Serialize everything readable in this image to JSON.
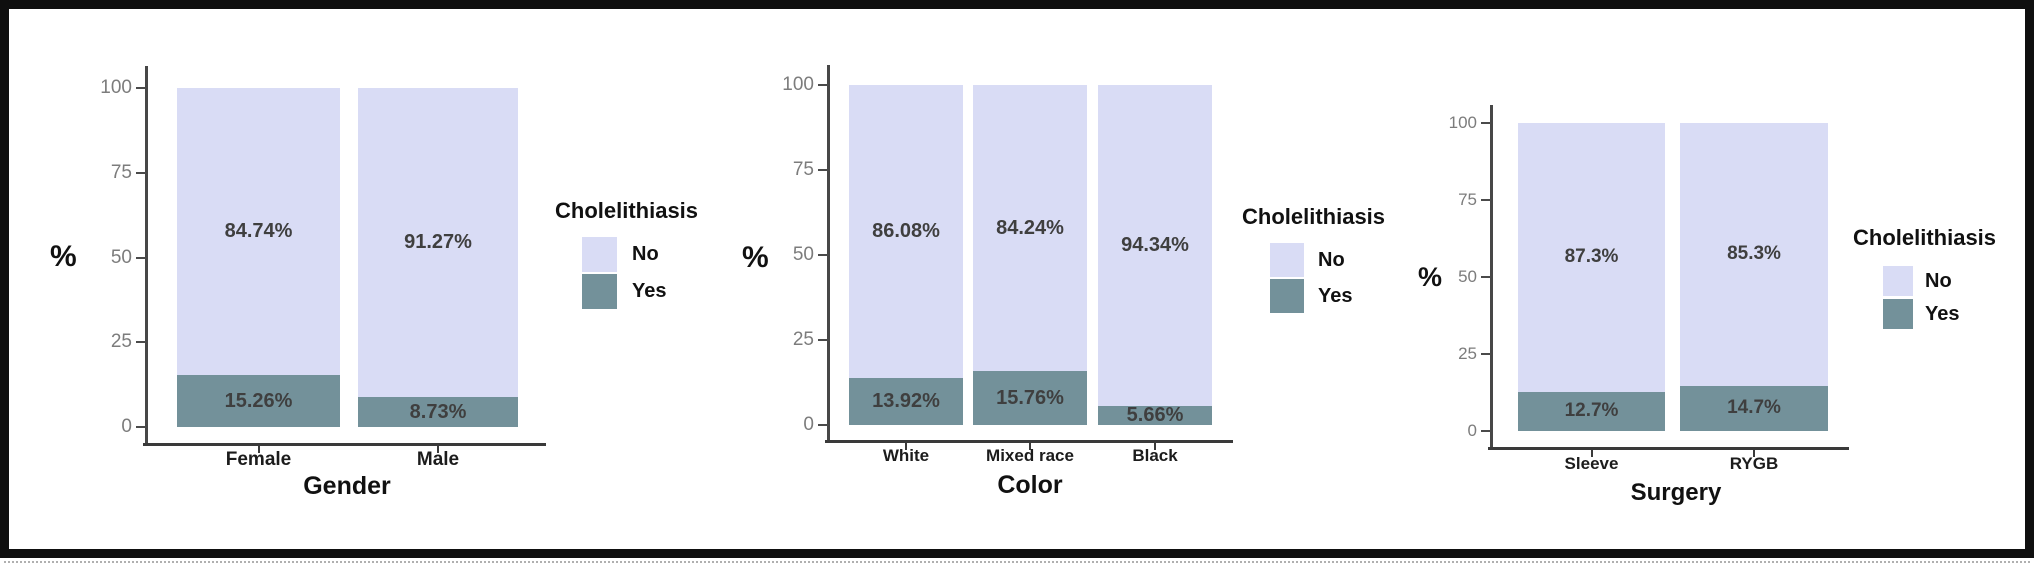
{
  "figure": {
    "background": "#ffffff",
    "frame_color": "#0f0f0f"
  },
  "palette": {
    "no": "#d9dcf5",
    "yes": "#73919a",
    "axis": "#474747",
    "tick_text": "#7c7c7c",
    "value_text": "#3f3f3f"
  },
  "chart_data": [
    {
      "type": "bar",
      "stacked": true,
      "orientation": "vertical",
      "title": "",
      "xlabel": "Gender",
      "ylabel": "%",
      "ylim": [
        0,
        100
      ],
      "yticks": [
        0,
        25,
        50,
        75,
        100
      ],
      "grid": false,
      "categories": [
        "Female",
        "Male"
      ],
      "series": [
        {
          "name": "No",
          "color": "#d9dcf5",
          "values": [
            84.74,
            91.27
          ],
          "labels": [
            "84.74%",
            "91.27%"
          ]
        },
        {
          "name": "Yes",
          "color": "#73919a",
          "values": [
            15.26,
            8.73
          ],
          "labels": [
            "15.26%",
            "8.73%"
          ]
        }
      ],
      "legend": {
        "title": "Cholelithiasis",
        "position": "right",
        "entries": [
          {
            "label": "No",
            "color": "#d9dcf5"
          },
          {
            "label": "Yes",
            "color": "#73919a"
          }
        ]
      }
    },
    {
      "type": "bar",
      "stacked": true,
      "orientation": "vertical",
      "title": "",
      "xlabel": "Color",
      "ylabel": "%",
      "ylim": [
        0,
        100
      ],
      "yticks": [
        0,
        25,
        50,
        75,
        100
      ],
      "grid": false,
      "categories": [
        "White",
        "Mixed race",
        "Black"
      ],
      "series": [
        {
          "name": "No",
          "color": "#d9dcf5",
          "values": [
            86.08,
            84.24,
            94.34
          ],
          "labels": [
            "86.08%",
            "84.24%",
            "94.34%"
          ]
        },
        {
          "name": "Yes",
          "color": "#73919a",
          "values": [
            13.92,
            15.76,
            5.66
          ],
          "labels": [
            "13.92%",
            "15.76%",
            "5.66%"
          ]
        }
      ],
      "legend": {
        "title": "Cholelithiasis",
        "position": "right",
        "entries": [
          {
            "label": "No",
            "color": "#d9dcf5"
          },
          {
            "label": "Yes",
            "color": "#73919a"
          }
        ]
      }
    },
    {
      "type": "bar",
      "stacked": true,
      "orientation": "vertical",
      "title": "",
      "xlabel": "Surgery",
      "ylabel": "%",
      "ylim": [
        0,
        100
      ],
      "yticks": [
        0,
        25,
        50,
        75,
        100
      ],
      "grid": false,
      "categories": [
        "Sleeve",
        "RYGB"
      ],
      "series": [
        {
          "name": "No",
          "color": "#d9dcf5",
          "values": [
            87.3,
            85.3
          ],
          "labels": [
            "87.3%",
            "85.3%"
          ]
        },
        {
          "name": "Yes",
          "color": "#73919a",
          "values": [
            12.7,
            14.7
          ],
          "labels": [
            "12.7%",
            "14.7%"
          ]
        }
      ],
      "legend": {
        "title": "Cholelithiasis",
        "position": "right",
        "entries": [
          {
            "label": "No",
            "color": "#d9dcf5"
          },
          {
            "label": "Yes",
            "color": "#73919a"
          }
        ]
      }
    }
  ]
}
